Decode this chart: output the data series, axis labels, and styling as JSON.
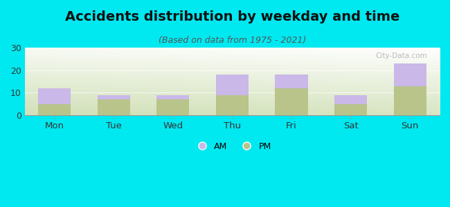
{
  "categories": [
    "Mon",
    "Tue",
    "Wed",
    "Thu",
    "Fri",
    "Sat",
    "Sun"
  ],
  "am_values": [
    7,
    2,
    2,
    9,
    6,
    4,
    10
  ],
  "pm_values": [
    5,
    7,
    7,
    9,
    12,
    5,
    13
  ],
  "am_color": "#c9b8e8",
  "pm_color": "#b8c48a",
  "title": "Accidents distribution by weekday and time",
  "subtitle": "(Based on data from 1975 - 2021)",
  "ylim": [
    0,
    30
  ],
  "yticks": [
    0,
    10,
    20,
    30
  ],
  "background_color": "#00e8f0",
  "watermark": "City-Data.com",
  "bar_width": 0.55,
  "title_fontsize": 14,
  "subtitle_fontsize": 9
}
